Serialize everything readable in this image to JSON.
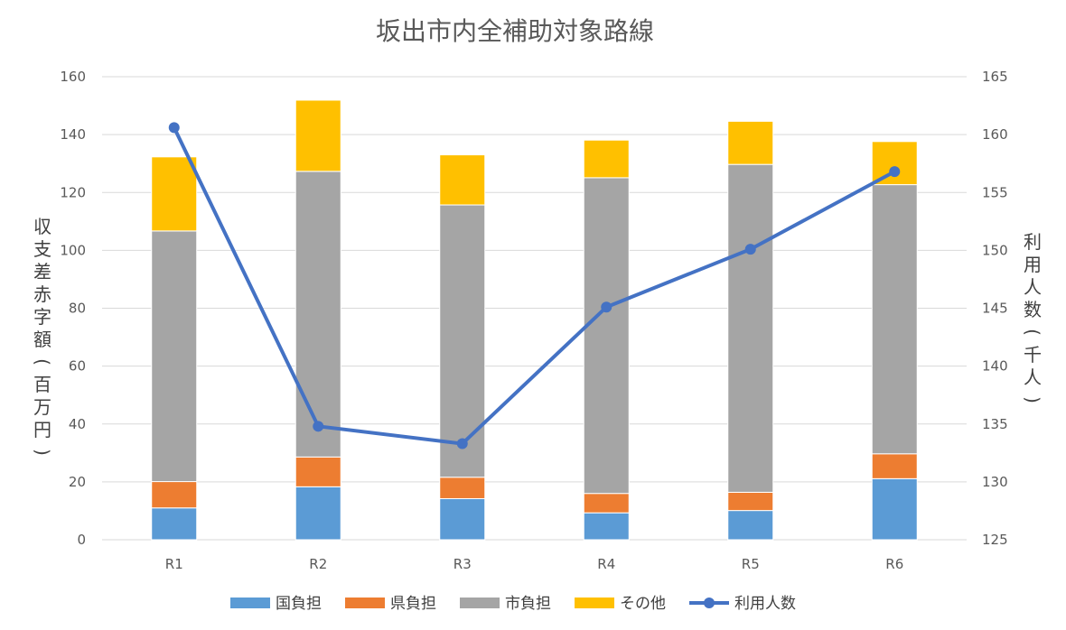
{
  "chart_data": {
    "type": "bar",
    "stacked": true,
    "title": "坂出市内全補助対象路線",
    "categories": [
      "R1",
      "R2",
      "R3",
      "R4",
      "R5",
      "R6"
    ],
    "series": [
      {
        "name": "国負担",
        "color": "#5b9bd5",
        "values": [
          11,
          18.3,
          14.2,
          9.3,
          10.1,
          21.1
        ]
      },
      {
        "name": "県負担",
        "color": "#ed7d31",
        "values": [
          9.1,
          10.3,
          7.4,
          6.7,
          6.3,
          8.6
        ]
      },
      {
        "name": "市負担",
        "color": "#a5a5a5",
        "values": [
          86.6,
          98.7,
          94.1,
          109.1,
          113.3,
          93
        ]
      },
      {
        "name": "その他",
        "color": "#ffc000",
        "values": [
          25.6,
          24.6,
          17.3,
          13,
          14.9,
          14.9
        ]
      }
    ],
    "line_series": {
      "name": "利用人数",
      "color": "#4472c4",
      "axis": "right",
      "values": [
        160.6,
        134.8,
        133.3,
        145.1,
        150.1,
        156.8
      ]
    },
    "ylabel": "収支差赤字額(百万円)",
    "y2label": "利用人数(千人)",
    "ylim": [
      0,
      160
    ],
    "y2lim": [
      125,
      165
    ],
    "yticks": [
      "0",
      "20",
      "40",
      "60",
      "80",
      "100",
      "120",
      "140",
      "160"
    ],
    "y2ticks": [
      "125",
      "130",
      "135",
      "140",
      "145",
      "150",
      "155",
      "160",
      "165"
    ],
    "grid": true,
    "legend_position": "bottom"
  }
}
